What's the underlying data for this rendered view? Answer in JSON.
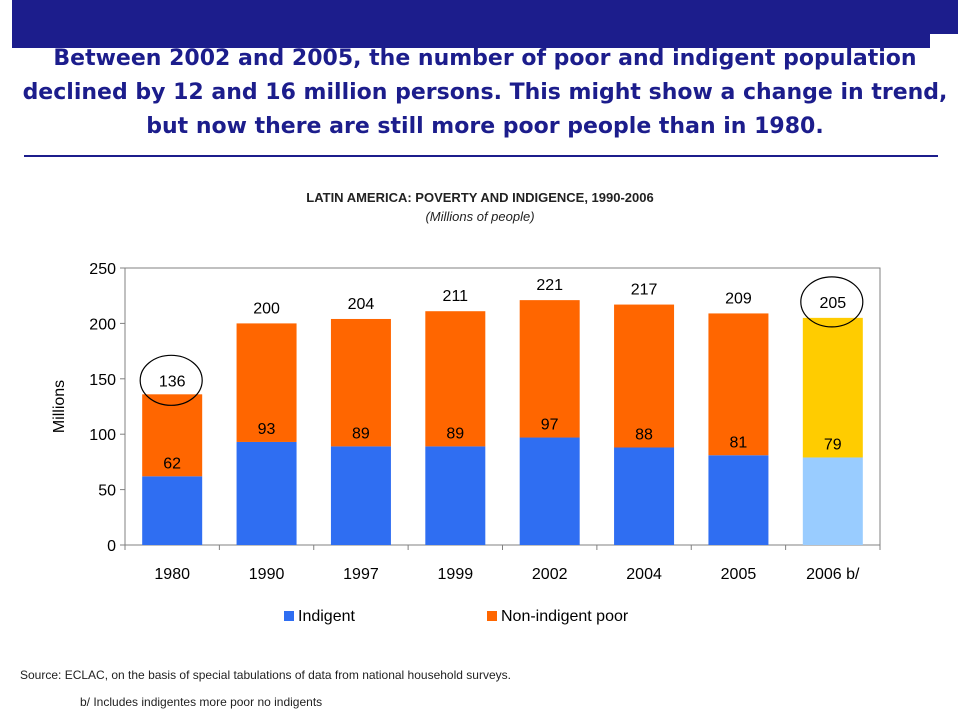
{
  "headline": "Between 2002 and  2005, the number of poor and indigent population declined by 12 and 16 million persons. This might show a change in trend, but now there are still more poor people than in 1980.",
  "colors": {
    "brand_navy": "#1c1d8c",
    "indigent": "#2f6ef2",
    "non_indigent_poor": "#ff6600",
    "indigent_projected": "#99ccff",
    "non_indigent_poor_projected": "#ffcc00"
  },
  "chart_data": {
    "type": "bar",
    "stacked": true,
    "title": "LATIN AMERICA: POVERTY AND INDIGENCE, 1990-2006",
    "subtitle": "(Millions of people)",
    "ylabel": "Millions",
    "xlabel": "",
    "ylim": [
      0,
      250
    ],
    "yticks": [
      0,
      50,
      100,
      150,
      200,
      250
    ],
    "grid": false,
    "legend_position": "bottom",
    "categories": [
      "1980",
      "1990",
      "1997",
      "1999",
      "2002",
      "2004",
      "2005",
      "2006 b/"
    ],
    "series": [
      {
        "name": "Indigent",
        "values": [
          62,
          93,
          89,
          89,
          97,
          88,
          81,
          79
        ]
      },
      {
        "name": "Non-indigent poor",
        "values": [
          74,
          107,
          115,
          122,
          124,
          129,
          128,
          126
        ]
      }
    ],
    "indigent_labels": [
      "62",
      "93",
      "89",
      "89",
      "97",
      "88",
      "81",
      "79"
    ],
    "total_labels": [
      "136",
      "200",
      "204",
      "211",
      "221",
      "217",
      "209",
      "205"
    ],
    "highlighted_categories": [
      "1980",
      "2006 b/"
    ]
  },
  "source": "Source: ECLAC, on the basis of special tabulations of data from national household surveys.",
  "footnote": "b/ Includes indigentes more poor  no indigents"
}
